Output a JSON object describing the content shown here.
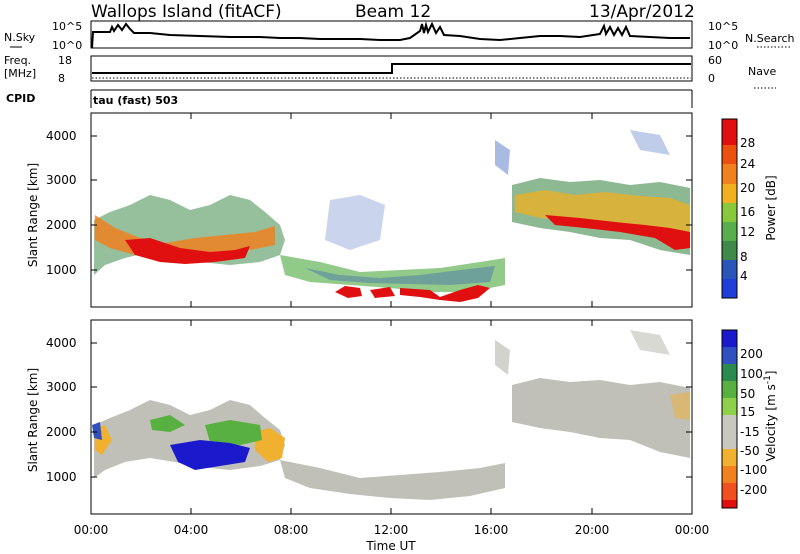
{
  "header": {
    "station": "Wallops Island (fitACF)",
    "beam": "Beam 12",
    "date": "13/Apr/2012"
  },
  "panels": {
    "nsky_label": "N.Sky",
    "nsky_ticks": [
      "10^5",
      "10^0"
    ],
    "nsearch_label": "N.Search",
    "nsearch_ticks": [
      "10^5",
      "10^0"
    ],
    "freq_label": "Freq.",
    "freq_unit": "[MHz]",
    "freq_ticks": [
      "18",
      "8"
    ],
    "nave_label": "Nave",
    "nave_ticks": [
      "60",
      "0"
    ],
    "cpid_label": "CPID",
    "cpid_value": "tau (fast) 503"
  },
  "colors": {
    "power_scale": [
      "#1f3fd8",
      "#2b55b8",
      "#3f8a4a",
      "#58ad4c",
      "#88c83c",
      "#f0b020",
      "#f08020",
      "#ec5010",
      "#e01010"
    ],
    "velocity_scale": [
      "#e01010",
      "#f05020",
      "#f08020",
      "#f0b030",
      "#c8c8c0",
      "#c8c8c0",
      "#8ed04a",
      "#58b040",
      "#2a8a50",
      "#3050c0",
      "#1a1acc"
    ],
    "ground_scatter": "#c0c0b8"
  },
  "chart_data": [
    {
      "type": "heatmap",
      "quantity": "Power",
      "ylabel": "Slant Range [km]",
      "yticks": [
        "4000",
        "3000",
        "2000",
        "1000"
      ],
      "ylim": [
        200,
        4600
      ],
      "colorbar_label": "Power [dB]",
      "colorbar_ticks": [
        "28",
        "24",
        "20",
        "16",
        "12",
        "8",
        "4"
      ],
      "clim": [
        0,
        32
      ],
      "xlim": [
        "00:00",
        "24:00"
      ]
    },
    {
      "type": "heatmap",
      "quantity": "Velocity",
      "ylabel": "Slant Range [km]",
      "yticks": [
        "4000",
        "3000",
        "2000",
        "1000"
      ],
      "ylim": [
        200,
        4600
      ],
      "colorbar_label": "Velocity [m s",
      "colorbar_label_sup": "-1",
      "colorbar_label_end": "]",
      "colorbar_ticks": [
        "200",
        "100",
        "50",
        "15",
        "-15",
        "-50",
        "-100",
        "-200"
      ],
      "xlabel": "Time UT",
      "xticks": [
        "00:00",
        "04:00",
        "08:00",
        "12:00",
        "16:00",
        "20:00",
        "00:00"
      ],
      "xlim": [
        "00:00",
        "24:00"
      ]
    }
  ]
}
